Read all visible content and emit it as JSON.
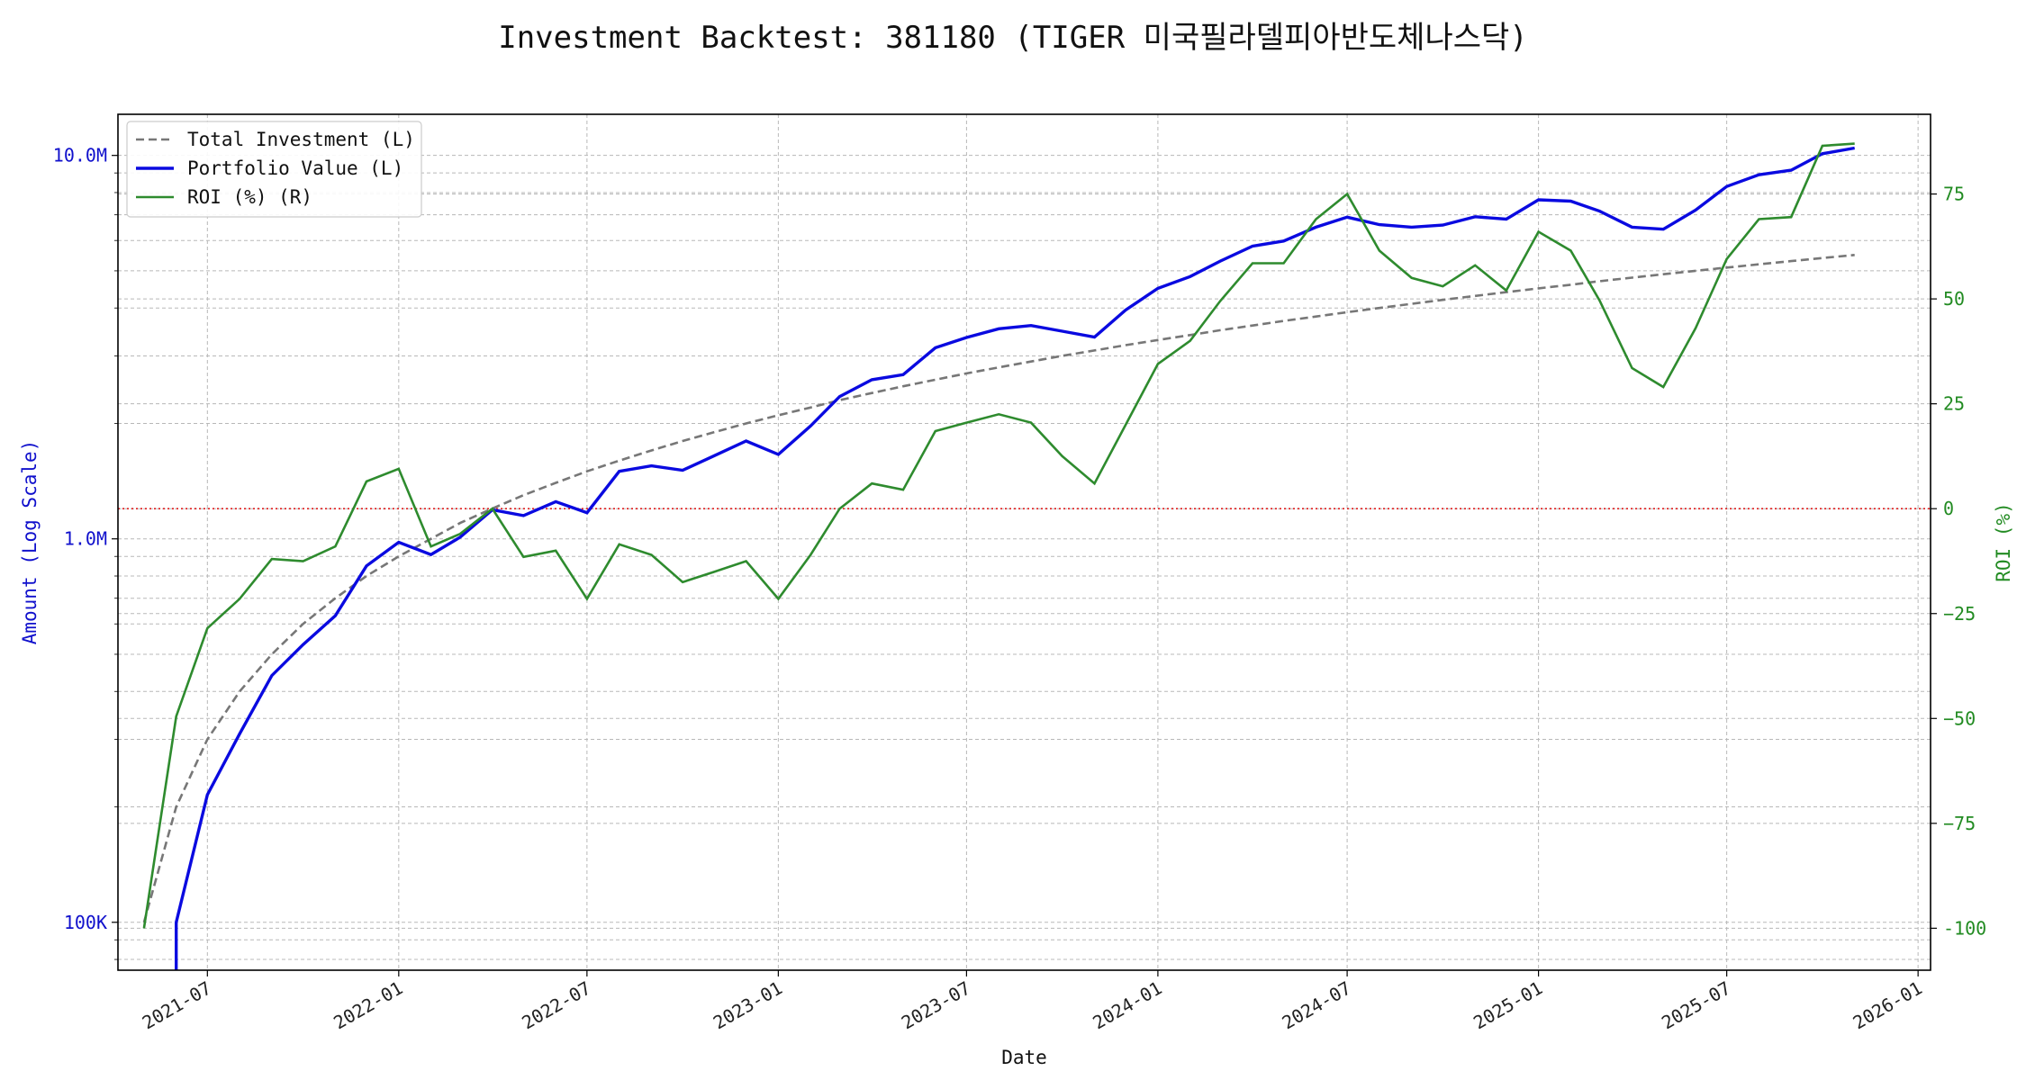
{
  "chart_data": {
    "type": "line",
    "title": "Investment Backtest: 381180 (TIGER 미국필라델피아반도체나스닥)",
    "xlabel": "Date",
    "ylabel_left": "Amount (Log Scale)",
    "ylabel_right": "ROI (%)",
    "y_left_scale": "log",
    "y_left_range": [
      75000,
      12800000
    ],
    "y_right_range": [
      -110,
      94
    ],
    "x_range": [
      "2021-04-06",
      "2026-01-13"
    ],
    "x_ticks": [
      "2021-07-01",
      "2022-01-01",
      "2022-07-01",
      "2023-01-01",
      "2023-07-01",
      "2024-01-01",
      "2024-07-01",
      "2025-01-01",
      "2025-07-01",
      "2026-01-01"
    ],
    "x_tick_labels": [
      "2021-07",
      "2022-01",
      "2022-07",
      "2023-01",
      "2023-07",
      "2024-01",
      "2024-07",
      "2025-01",
      "2025-07",
      "2026-01"
    ],
    "y_left_ticks": [
      100000,
      1000000,
      10000000
    ],
    "y_left_tick_labels": [
      "100K",
      "1.0M",
      "10.0M"
    ],
    "y_right_ticks": [
      -100,
      -75,
      -50,
      -25,
      0,
      25,
      50,
      75
    ],
    "y_right_tick_labels": [
      "-100",
      "−75",
      "−50",
      "−25",
      "0",
      "25",
      "50",
      "75"
    ],
    "grid": true,
    "legend_position": "top-left",
    "reference_line": {
      "axis": "right",
      "value": 0,
      "color": "#e02020",
      "style": "dotted"
    },
    "x": [
      "2021-05-01",
      "2021-06-01",
      "2021-07-01",
      "2021-08-01",
      "2021-09-01",
      "2021-10-01",
      "2021-11-01",
      "2021-12-01",
      "2022-01-01",
      "2022-02-01",
      "2022-03-01",
      "2022-04-01",
      "2022-05-01",
      "2022-06-01",
      "2022-07-01",
      "2022-08-01",
      "2022-09-01",
      "2022-10-01",
      "2022-11-01",
      "2022-12-01",
      "2023-01-01",
      "2023-02-01",
      "2023-03-01",
      "2023-04-01",
      "2023-05-01",
      "2023-06-01",
      "2023-07-01",
      "2023-08-01",
      "2023-09-01",
      "2023-10-01",
      "2023-11-01",
      "2023-12-01",
      "2024-01-01",
      "2024-02-01",
      "2024-03-01",
      "2024-04-01",
      "2024-05-01",
      "2024-06-01",
      "2024-07-01",
      "2024-08-01",
      "2024-09-01",
      "2024-10-01",
      "2024-11-01",
      "2024-12-01",
      "2025-01-01",
      "2025-02-01",
      "2025-03-01",
      "2025-04-01",
      "2025-05-01",
      "2025-06-01",
      "2025-07-01",
      "2025-08-01",
      "2025-09-01",
      "2025-10-01",
      "2025-11-01"
    ],
    "series": [
      {
        "name": "Total Investment (L)",
        "axis": "left",
        "color": "#777777",
        "style": "dashed",
        "values": [
          100000,
          200000,
          300000,
          400000,
          500000,
          600000,
          700000,
          800000,
          900000,
          1000000,
          1100000,
          1200000,
          1300000,
          1400000,
          1500000,
          1600000,
          1700000,
          1800000,
          1900000,
          2000000,
          2100000,
          2200000,
          2300000,
          2400000,
          2500000,
          2600000,
          2700000,
          2800000,
          2900000,
          3000000,
          3100000,
          3200000,
          3300000,
          3400000,
          3500000,
          3600000,
          3700000,
          3800000,
          3900000,
          4000000,
          4100000,
          4200000,
          4300000,
          4400000,
          4500000,
          4600000,
          4700000,
          4800000,
          4900000,
          5000000,
          5100000,
          5200000,
          5300000,
          5400000,
          5500000
        ]
      },
      {
        "name": "Portfolio Value (L)",
        "axis": "left",
        "color": "#0a0ae0",
        "style": "solid",
        "values": [
          null,
          100000,
          215000,
          310000,
          440000,
          530000,
          630000,
          850000,
          980000,
          910000,
          1010000,
          1190000,
          1150000,
          1250000,
          1170000,
          1500000,
          1550000,
          1510000,
          1650000,
          1800000,
          1660000,
          1970000,
          2350000,
          2600000,
          2680000,
          3150000,
          3350000,
          3530000,
          3600000,
          3480000,
          3360000,
          3950000,
          4500000,
          4830000,
          5300000,
          5800000,
          5980000,
          6500000,
          6900000,
          6600000,
          6500000,
          6580000,
          6920000,
          6820000,
          7660000,
          7600000,
          7150000,
          6500000,
          6420000,
          7200000,
          8300000,
          8900000,
          9150000,
          10100000,
          10450000
        ]
      },
      {
        "name": "ROI (%) (R)",
        "axis": "right",
        "color": "#2e8b2e",
        "style": "solid",
        "values": [
          -100,
          -49.5,
          -28.5,
          -21.5,
          -12,
          -12.5,
          -9,
          6.5,
          9.5,
          -9,
          -6,
          0,
          -11.5,
          -10,
          -21.5,
          -8.5,
          -11,
          -17.5,
          -15,
          -12.5,
          -21.5,
          -11,
          0,
          6,
          4.5,
          18.5,
          20.5,
          22.5,
          20.5,
          12.5,
          6,
          20,
          34.5,
          40,
          49.5,
          58.5,
          58.5,
          69,
          75,
          61.5,
          55,
          53,
          58,
          52,
          66,
          61.5,
          49.5,
          33.5,
          29,
          43,
          59.5,
          69,
          69.5,
          86.5,
          87
        ]
      }
    ]
  }
}
